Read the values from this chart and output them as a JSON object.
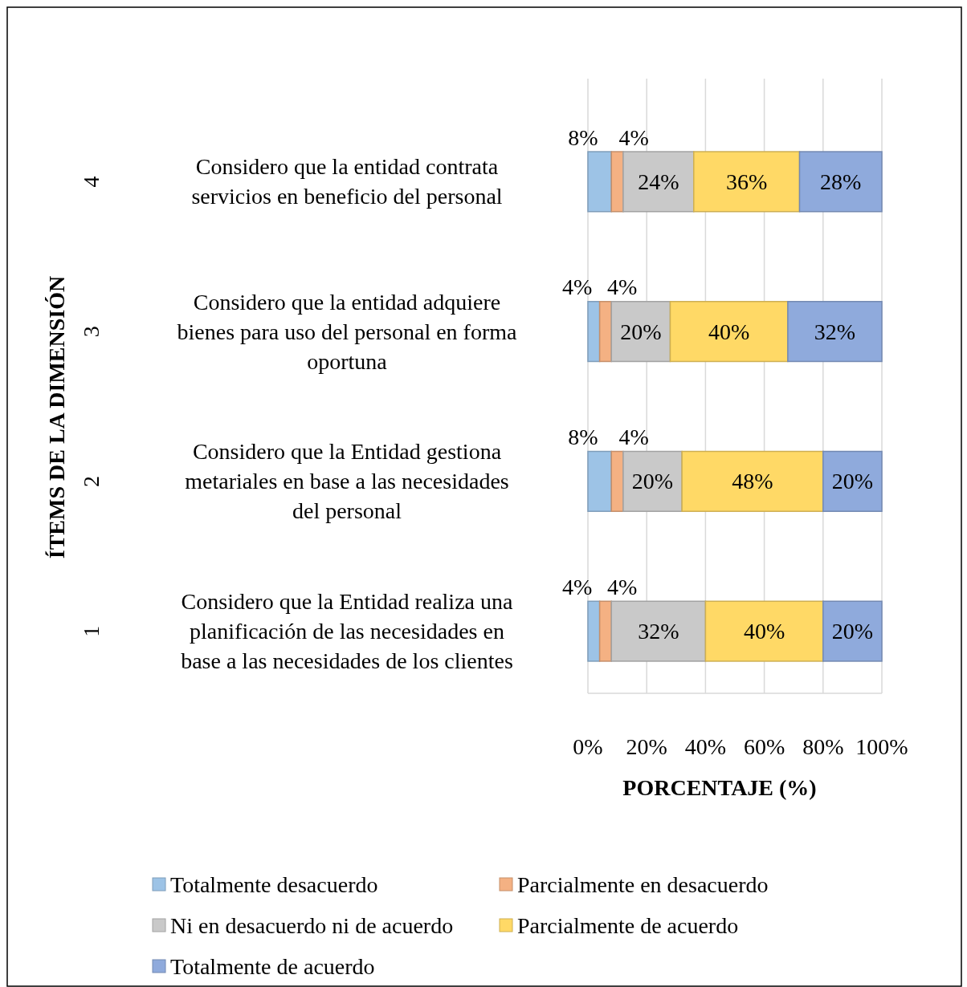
{
  "chart_data": {
    "type": "bar",
    "orientation": "horizontal",
    "stacked": true,
    "categories": [
      "Considero que la entidad contrata servicios en beneficio del personal",
      "Considero que la entidad adquiere bienes para uso del personal en forma oportuna",
      "Considero que la Entidad gestiona metariales en base a las necesidades del personal",
      "Considero que la Entidad realiza una planificación de las necesidades en base a las necesidades de los clientes"
    ],
    "series": [
      {
        "name": "Totalmente desacuerdo",
        "color": "#9dc3e6",
        "values": [
          8,
          4,
          8,
          4
        ],
        "value_labels": [
          "8%",
          "4%",
          "8%",
          "4%"
        ]
      },
      {
        "name": "Parcialmente en desacuerdo",
        "color": "#f4b183",
        "values": [
          4,
          4,
          4,
          4
        ],
        "value_labels": [
          "4%",
          "4%",
          "4%",
          "4%"
        ]
      },
      {
        "name": "Ni en desacuerdo ni de acuerdo",
        "color": "#c9c9c9",
        "values": [
          24,
          20,
          20,
          32
        ],
        "value_labels": [
          "24%",
          "20%",
          "20%",
          "32%"
        ]
      },
      {
        "name": "Parcialmente de acuerdo",
        "color": "#ffd966",
        "values": [
          36,
          40,
          48,
          40
        ],
        "value_labels": [
          "36%",
          "40%",
          "48%",
          "40%"
        ]
      },
      {
        "name": "Totalmente de acuerdo",
        "color": "#8faadc",
        "values": [
          28,
          32,
          20,
          20
        ],
        "value_labels": [
          "28%",
          "32%",
          "20%",
          "20%"
        ]
      }
    ],
    "xlim": [
      0,
      100
    ],
    "xticks": [
      {
        "value": 0,
        "label": "0%"
      },
      {
        "value": 20,
        "label": "20%"
      },
      {
        "value": 40,
        "label": "40%"
      },
      {
        "value": 60,
        "label": "60%"
      },
      {
        "value": 80,
        "label": "80%"
      },
      {
        "value": 100,
        "label": "100%"
      }
    ],
    "xlabel": "PORCENTAJE (%)",
    "ylabel": "ÍTEMS DE LA DIMENSIÓN",
    "annotations": [
      "4",
      "3",
      "2",
      "1"
    ],
    "grid": "x",
    "legend": "bottom"
  }
}
